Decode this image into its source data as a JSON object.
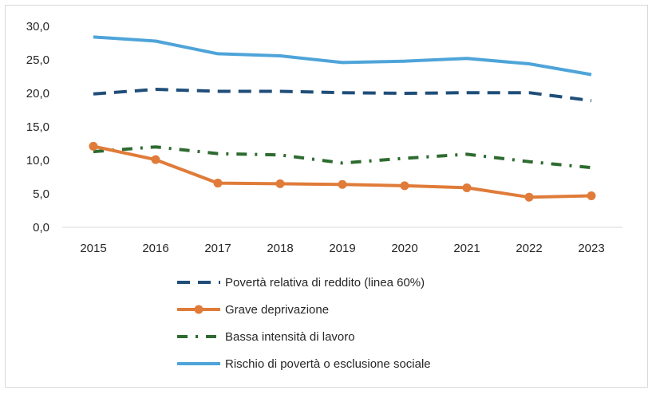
{
  "chart_data": {
    "type": "line",
    "title": "",
    "xlabel": "",
    "ylabel": "",
    "x": [
      "2015",
      "2016",
      "2017",
      "2018",
      "2019",
      "2020",
      "2021",
      "2022",
      "2023"
    ],
    "ylim": [
      0,
      30
    ],
    "y_ticks": [
      "0,0",
      "5,0",
      "10,0",
      "15,0",
      "20,0",
      "25,0",
      "30,0"
    ],
    "grid": false,
    "legend_position": "bottom",
    "series": [
      {
        "name": "Povertà relativa di reddito (linea 60%)",
        "values": [
          19.9,
          20.6,
          20.3,
          20.3,
          20.1,
          20.0,
          20.1,
          20.1,
          18.9
        ],
        "color": "#1f4e79",
        "style": "dashed"
      },
      {
        "name": "Grave deprivazione",
        "values": [
          12.1,
          10.1,
          6.6,
          6.5,
          6.4,
          6.2,
          5.9,
          4.5,
          4.7
        ],
        "color": "#e07b39",
        "style": "solid-markers"
      },
      {
        "name": "Bassa intensità di lavoro",
        "values": [
          11.3,
          12.0,
          11.0,
          10.8,
          9.6,
          10.3,
          10.9,
          9.8,
          8.9
        ],
        "color": "#2e6b30",
        "style": "dash-dot"
      },
      {
        "name": "Rischio di povertà o esclusione sociale",
        "values": [
          28.4,
          27.8,
          25.9,
          25.6,
          24.6,
          24.8,
          25.2,
          24.4,
          22.8
        ],
        "color": "#4ea4d9",
        "style": "solid"
      }
    ]
  }
}
